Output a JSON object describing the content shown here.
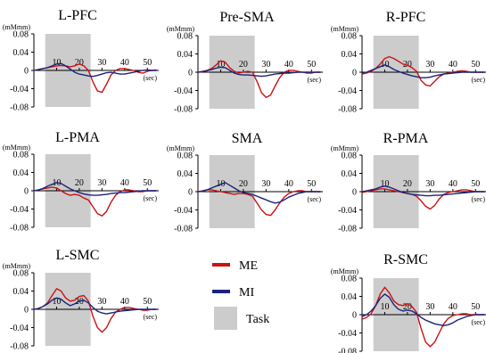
{
  "legend": {
    "items": [
      {
        "label": "ME",
        "color": "#cc1111",
        "kind": "line"
      },
      {
        "label": "MI",
        "color": "#1a237e",
        "kind": "line"
      },
      {
        "label": "Task",
        "color": "#cccccc",
        "kind": "box"
      }
    ]
  },
  "chart_data": [
    {
      "type": "line",
      "title": "L-PFC",
      "ylabel_unit": "(mMmm)",
      "xlabel_unit": "(sec)",
      "ylim": [
        -0.08,
        0.08
      ],
      "yticks": [
        "0.08",
        "0.04",
        "0",
        "-0.04",
        "-0.08"
      ],
      "xlim": [
        0,
        55
      ],
      "xticks": [
        "10",
        "20",
        "30",
        "40",
        "50"
      ],
      "task_interval": [
        5,
        25
      ],
      "grid": false,
      "x": [
        0,
        2,
        4,
        6,
        8,
        10,
        12,
        14,
        16,
        18,
        20,
        22,
        24,
        26,
        28,
        30,
        32,
        34,
        36,
        38,
        40,
        42,
        44,
        46,
        48,
        50,
        52,
        54
      ],
      "series": [
        {
          "name": "ME",
          "color": "#cc1111",
          "values": [
            0.0,
            0.002,
            0.004,
            0.006,
            0.008,
            0.01,
            0.011,
            0.01,
            0.008,
            0.01,
            0.014,
            0.01,
            0.0,
            -0.025,
            -0.045,
            -0.048,
            -0.03,
            -0.01,
            0.0,
            0.004,
            0.004,
            0.002,
            0.0,
            -0.004,
            -0.006,
            -0.002,
            0.0,
            0.001
          ]
        },
        {
          "name": "MI",
          "color": "#1a237e",
          "values": [
            0.0,
            0.002,
            0.004,
            0.006,
            0.01,
            0.014,
            0.015,
            0.01,
            0.003,
            -0.004,
            -0.008,
            -0.01,
            -0.012,
            -0.013,
            -0.011,
            -0.008,
            -0.005,
            -0.004,
            -0.006,
            -0.008,
            -0.008,
            -0.006,
            -0.004,
            -0.002,
            0.0,
            0.001,
            0.0,
            0.0
          ]
        }
      ]
    },
    {
      "type": "line",
      "title": "Pre-SMA",
      "ylabel_unit": "(mMmm)",
      "xlabel_unit": "(sec)",
      "ylim": [
        -0.08,
        0.08
      ],
      "yticks": [
        "0.08",
        "0.04",
        "0",
        "-0.04",
        "-0.08"
      ],
      "xlim": [
        0,
        55
      ],
      "xticks": [
        "10",
        "20",
        "30",
        "40",
        "50"
      ],
      "task_interval": [
        5,
        25
      ],
      "grid": false,
      "x": [
        0,
        2,
        4,
        6,
        8,
        10,
        12,
        14,
        16,
        18,
        20,
        22,
        24,
        26,
        28,
        30,
        32,
        34,
        36,
        38,
        40,
        42,
        44,
        46,
        48,
        50,
        52,
        54
      ],
      "series": [
        {
          "name": "ME",
          "color": "#cc1111",
          "values": [
            0.0,
            0.002,
            0.004,
            0.008,
            0.016,
            0.025,
            0.022,
            0.01,
            0.002,
            -0.002,
            0.0,
            0.002,
            0.0,
            -0.02,
            -0.045,
            -0.055,
            -0.05,
            -0.03,
            -0.012,
            0.0,
            0.004,
            0.004,
            0.002,
            0.0,
            -0.002,
            -0.002,
            0.0,
            0.0
          ]
        },
        {
          "name": "MI",
          "color": "#1a237e",
          "values": [
            0.0,
            0.001,
            0.003,
            0.006,
            0.009,
            0.011,
            0.01,
            0.004,
            -0.002,
            -0.005,
            -0.006,
            -0.006,
            -0.007,
            -0.008,
            -0.009,
            -0.008,
            -0.006,
            -0.004,
            -0.003,
            -0.002,
            -0.002,
            -0.001,
            0.0,
            0.0,
            0.0,
            0.0,
            0.0,
            0.0
          ]
        }
      ]
    },
    {
      "type": "line",
      "title": "R-PFC",
      "ylabel_unit": "(mMmm)",
      "xlabel_unit": "(sec)",
      "ylim": [
        -0.08,
        0.08
      ],
      "yticks": [
        "0.08",
        "0.04",
        "0",
        "-0.04",
        "-0.08"
      ],
      "xlim": [
        0,
        55
      ],
      "xticks": [
        "10",
        "20",
        "30",
        "40",
        "50"
      ],
      "task_interval": [
        5,
        25
      ],
      "grid": false,
      "x": [
        0,
        2,
        4,
        6,
        8,
        10,
        12,
        14,
        16,
        18,
        20,
        22,
        24,
        26,
        28,
        30,
        32,
        34,
        36,
        38,
        40,
        42,
        44,
        46,
        48,
        50,
        52,
        54
      ],
      "series": [
        {
          "name": "ME",
          "color": "#cc1111",
          "values": [
            -0.004,
            -0.002,
            0.002,
            0.008,
            0.018,
            0.03,
            0.034,
            0.03,
            0.024,
            0.018,
            0.015,
            0.01,
            0.002,
            -0.018,
            -0.028,
            -0.03,
            -0.02,
            -0.01,
            -0.004,
            -0.002,
            0.0,
            0.002,
            0.003,
            0.002,
            0.0,
            0.0,
            0.0,
            0.0
          ]
        },
        {
          "name": "MI",
          "color": "#1a237e",
          "values": [
            -0.002,
            0.0,
            0.004,
            0.008,
            0.012,
            0.016,
            0.012,
            0.006,
            0.002,
            -0.002,
            -0.005,
            -0.008,
            -0.01,
            -0.012,
            -0.012,
            -0.011,
            -0.008,
            -0.006,
            -0.004,
            -0.003,
            -0.002,
            -0.001,
            0.0,
            0.0,
            0.0,
            0.0,
            0.0,
            0.0
          ]
        }
      ]
    },
    {
      "type": "line",
      "title": "L-PMA",
      "ylabel_unit": "(mMmm)",
      "xlabel_unit": "(sec)",
      "ylim": [
        -0.08,
        0.08
      ],
      "yticks": [
        "0.08",
        "0.04",
        "0",
        "-0.04",
        "-0.08"
      ],
      "xlim": [
        0,
        55
      ],
      "xticks": [
        "10",
        "20",
        "30",
        "40",
        "50"
      ],
      "task_interval": [
        5,
        25
      ],
      "grid": false,
      "x": [
        0,
        2,
        4,
        6,
        8,
        10,
        12,
        14,
        16,
        18,
        20,
        22,
        24,
        26,
        28,
        30,
        32,
        34,
        36,
        38,
        40,
        42,
        44,
        46,
        48,
        50,
        52,
        54
      ],
      "series": [
        {
          "name": "ME",
          "color": "#cc1111",
          "values": [
            0.0,
            0.002,
            0.004,
            0.006,
            0.008,
            0.006,
            0.0,
            -0.006,
            -0.01,
            -0.008,
            -0.01,
            -0.016,
            -0.02,
            -0.035,
            -0.05,
            -0.055,
            -0.045,
            -0.025,
            -0.01,
            -0.002,
            0.002,
            0.002,
            0.0,
            -0.002,
            -0.002,
            0.0,
            0.0,
            0.0
          ]
        },
        {
          "name": "MI",
          "color": "#1a237e",
          "values": [
            0.0,
            0.002,
            0.005,
            0.01,
            0.014,
            0.018,
            0.016,
            0.01,
            0.004,
            0.0,
            -0.004,
            -0.007,
            -0.009,
            -0.01,
            -0.01,
            -0.009,
            -0.008,
            -0.006,
            -0.005,
            -0.004,
            -0.004,
            -0.003,
            -0.002,
            -0.001,
            0.0,
            0.0,
            0.0,
            0.0
          ]
        }
      ]
    },
    {
      "type": "line",
      "title": "SMA",
      "ylabel_unit": "(mMmm)",
      "xlabel_unit": "(sec)",
      "ylim": [
        -0.08,
        0.08
      ],
      "yticks": [
        "0.08",
        "0.04",
        "0",
        "-0.04",
        "-0.08"
      ],
      "xlim": [
        0,
        55
      ],
      "xticks": [
        "10",
        "20",
        "30",
        "40",
        "50"
      ],
      "task_interval": [
        5,
        25
      ],
      "grid": false,
      "x": [
        0,
        2,
        4,
        6,
        8,
        10,
        12,
        14,
        16,
        18,
        20,
        22,
        24,
        26,
        28,
        30,
        32,
        34,
        36,
        38,
        40,
        42,
        44,
        46,
        48,
        50,
        52,
        54
      ],
      "series": [
        {
          "name": "ME",
          "color": "#cc1111",
          "values": [
            0.0,
            0.002,
            0.004,
            0.004,
            0.002,
            0.0,
            -0.002,
            -0.004,
            -0.006,
            -0.004,
            -0.004,
            -0.006,
            -0.01,
            -0.025,
            -0.04,
            -0.05,
            -0.052,
            -0.04,
            -0.025,
            -0.012,
            -0.004,
            0.0,
            0.002,
            0.002,
            0.0,
            0.0,
            0.0,
            0.0
          ]
        },
        {
          "name": "MI",
          "color": "#1a237e",
          "values": [
            0.0,
            0.001,
            0.004,
            0.008,
            0.012,
            0.016,
            0.02,
            0.014,
            0.008,
            0.002,
            -0.002,
            -0.004,
            -0.006,
            -0.01,
            -0.014,
            -0.018,
            -0.022,
            -0.025,
            -0.023,
            -0.018,
            -0.012,
            -0.008,
            -0.004,
            -0.002,
            0.0,
            0.0,
            0.0,
            0.0
          ]
        }
      ]
    },
    {
      "type": "line",
      "title": "R-PMA",
      "ylabel_unit": "(mMmm)",
      "xlabel_unit": "(sec)",
      "ylim": [
        -0.08,
        0.08
      ],
      "yticks": [
        "0.08",
        "0.04",
        "0",
        "-0.04",
        "-0.08"
      ],
      "xlim": [
        0,
        55
      ],
      "xticks": [
        "10",
        "20",
        "30",
        "40",
        "50"
      ],
      "task_interval": [
        5,
        25
      ],
      "grid": false,
      "x": [
        0,
        2,
        4,
        6,
        8,
        10,
        12,
        14,
        16,
        18,
        20,
        22,
        24,
        26,
        28,
        30,
        32,
        34,
        36,
        38,
        40,
        42,
        44,
        46,
        48,
        50,
        52,
        54
      ],
      "series": [
        {
          "name": "ME",
          "color": "#cc1111",
          "values": [
            -0.002,
            0.0,
            0.002,
            0.004,
            0.006,
            0.006,
            0.004,
            0.002,
            0.0,
            -0.002,
            -0.004,
            -0.006,
            -0.01,
            -0.02,
            -0.032,
            -0.038,
            -0.03,
            -0.016,
            -0.006,
            -0.002,
            0.0,
            0.002,
            0.004,
            0.004,
            0.002,
            0.0,
            0.0,
            0.0
          ]
        },
        {
          "name": "MI",
          "color": "#1a237e",
          "values": [
            0.0,
            0.002,
            0.004,
            0.006,
            0.01,
            0.012,
            0.01,
            0.006,
            0.002,
            -0.002,
            -0.004,
            -0.006,
            -0.007,
            -0.008,
            -0.009,
            -0.009,
            -0.008,
            -0.008,
            -0.007,
            -0.006,
            -0.005,
            -0.004,
            -0.003,
            -0.002,
            -0.001,
            0.0,
            0.0,
            0.0
          ]
        }
      ]
    },
    {
      "type": "line",
      "title": "L-SMC",
      "ylabel_unit": "(mMmm)",
      "xlabel_unit": "(sec)",
      "ylim": [
        -0.08,
        0.08
      ],
      "yticks": [
        "0.08",
        "0.04",
        "0",
        "-0.04",
        "-0.08"
      ],
      "xlim": [
        0,
        55
      ],
      "xticks": [
        "10",
        "20",
        "30",
        "40",
        "50"
      ],
      "task_interval": [
        5,
        25
      ],
      "grid": false,
      "x": [
        0,
        2,
        4,
        6,
        8,
        10,
        12,
        14,
        16,
        18,
        20,
        22,
        24,
        26,
        28,
        30,
        32,
        34,
        36,
        38,
        40,
        42,
        44,
        46,
        48,
        50,
        52,
        54
      ],
      "series": [
        {
          "name": "ME",
          "color": "#cc1111",
          "values": [
            0.0,
            0.002,
            0.006,
            0.014,
            0.03,
            0.045,
            0.04,
            0.025,
            0.018,
            0.02,
            0.028,
            0.03,
            0.018,
            -0.015,
            -0.04,
            -0.05,
            -0.04,
            -0.02,
            -0.006,
            0.0,
            0.004,
            0.004,
            0.002,
            0.0,
            -0.002,
            -0.002,
            0.0,
            0.0
          ]
        },
        {
          "name": "MI",
          "color": "#1a237e",
          "values": [
            0.0,
            0.002,
            0.006,
            0.012,
            0.02,
            0.025,
            0.022,
            0.014,
            0.008,
            0.012,
            0.018,
            0.02,
            0.014,
            0.004,
            -0.004,
            -0.008,
            -0.01,
            -0.008,
            -0.006,
            -0.004,
            -0.003,
            -0.002,
            -0.001,
            0.0,
            0.0,
            0.0,
            0.0,
            0.0
          ]
        }
      ]
    },
    {
      "type": "line",
      "title": "R-SMC",
      "ylabel_unit": "(mMmm)",
      "xlabel_unit": "(sec)",
      "ylim": [
        -0.08,
        0.08
      ],
      "yticks": [
        "0.08",
        "0.04",
        "0",
        "-0.04",
        "-0.08"
      ],
      "xlim": [
        0,
        55
      ],
      "xticks": [
        "10",
        "20",
        "30",
        "40",
        "50"
      ],
      "task_interval": [
        5,
        25
      ],
      "grid": false,
      "x": [
        0,
        2,
        4,
        6,
        8,
        10,
        12,
        14,
        16,
        18,
        20,
        22,
        24,
        26,
        28,
        30,
        32,
        34,
        36,
        38,
        40,
        42,
        44,
        46,
        48,
        50,
        52,
        54
      ],
      "series": [
        {
          "name": "ME",
          "color": "#cc1111",
          "values": [
            -0.01,
            -0.006,
            0.002,
            0.02,
            0.045,
            0.06,
            0.048,
            0.03,
            0.022,
            0.02,
            0.024,
            0.018,
            0.005,
            -0.03,
            -0.06,
            -0.07,
            -0.06,
            -0.04,
            -0.02,
            -0.008,
            -0.002,
            0.0,
            0.002,
            0.002,
            0.0,
            0.0,
            0.0,
            0.0
          ]
        },
        {
          "name": "MI",
          "color": "#1a237e",
          "values": [
            -0.004,
            0.0,
            0.008,
            0.02,
            0.036,
            0.045,
            0.038,
            0.022,
            0.012,
            0.008,
            0.01,
            0.008,
            0.002,
            -0.006,
            -0.012,
            -0.016,
            -0.02,
            -0.022,
            -0.024,
            -0.022,
            -0.018,
            -0.012,
            -0.008,
            -0.004,
            -0.002,
            0.0,
            0.0,
            0.0
          ]
        }
      ]
    }
  ]
}
